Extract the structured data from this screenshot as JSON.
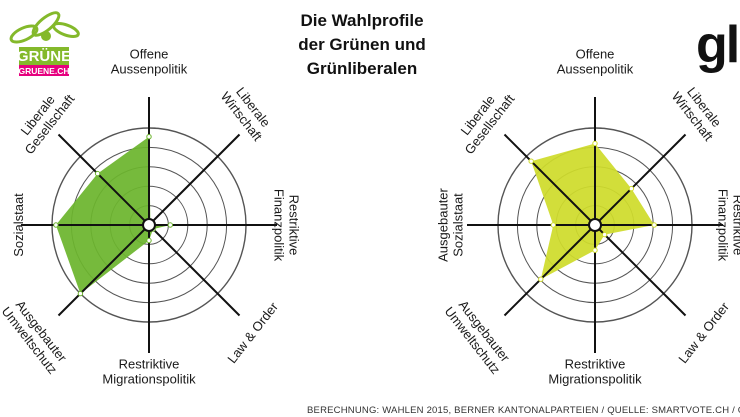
{
  "title": [
    "Die Wahlprofile",
    "der Grünen und",
    "Grünliberalen"
  ],
  "footer": "BERECHNUNG: WAHLEN 2015, BERNER KANTONALPARTEIEN / QUELLE: SMARTVOTE.CH / GRAFIK: ST",
  "logos": {
    "left": {
      "name": "GRÜNE",
      "sub": "GRUENE.CH"
    },
    "right": {
      "name": "glp"
    }
  },
  "colors": {
    "gruene_fill": "#6cb52d",
    "glp_fill": "#cfdc2b",
    "ring": "#555555",
    "spoke": "#111111",
    "logo_green": "#84b92b",
    "logo_magenta": "#e6007e"
  },
  "chart_data": [
    {
      "type": "radar",
      "name": "Grüne",
      "axes": [
        {
          "label": [
            "Offene",
            "Aussenpolitik"
          ],
          "value": 91
        },
        {
          "label": [
            "Liberale",
            "Wirtschaft"
          ],
          "value": 2
        },
        {
          "label": [
            "Restriktive",
            "Finanzpolitik"
          ],
          "value": 22
        },
        {
          "label": [
            "Law & Order"
          ],
          "value": 6
        },
        {
          "label": [
            "Restriktive",
            "Migrationspolitik"
          ],
          "value": 16
        },
        {
          "label": [
            "Ausgebauter",
            "Umweltschutz"
          ],
          "value": 100
        },
        {
          "label": [
            "Sozialstaat"
          ],
          "value": 96
        },
        {
          "label": [
            "Liberale",
            "Gesellschaft"
          ],
          "value": 75
        }
      ],
      "ylim": [
        0,
        100
      ],
      "rings": 5
    },
    {
      "type": "radar",
      "name": "Grünliberale",
      "axes": [
        {
          "label": [
            "Offene",
            "Aussenpolitik"
          ],
          "value": 84
        },
        {
          "label": [
            "Liberale",
            "Wirtschaft"
          ],
          "value": 53
        },
        {
          "label": [
            "Restriktive",
            "Finanzpolitik"
          ],
          "value": 61
        },
        {
          "label": [
            "Law & Order"
          ],
          "value": 14
        },
        {
          "label": [
            "Restriktive",
            "Migrationspolitik"
          ],
          "value": 26
        },
        {
          "label": [
            "Ausgebauter",
            "Umweltschutz"
          ],
          "value": 79
        },
        {
          "label": [
            "Ausgebauter",
            "Sozialstaat"
          ],
          "value": 43
        },
        {
          "label": [
            "Liberale",
            "Gesellschaft"
          ],
          "value": 93
        }
      ],
      "ylim": [
        0,
        100
      ],
      "rings": 5
    }
  ]
}
